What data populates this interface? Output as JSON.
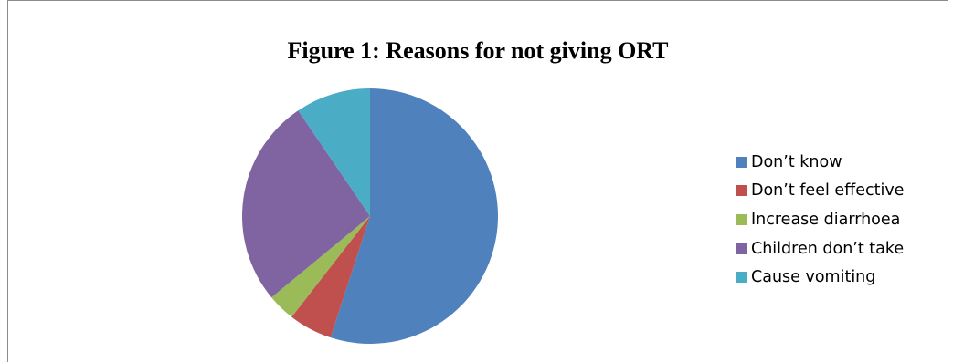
{
  "chart_data": {
    "type": "pie",
    "title": "Figure 1: Reasons for not giving ORT",
    "slices": [
      {
        "label": "Don’t know",
        "value": 55,
        "color": "#4f81bd"
      },
      {
        "label": "Don’t feel effective",
        "value": 5.5,
        "color": "#c0504d"
      },
      {
        "label": "Increase diarrhoea",
        "value": 3.5,
        "color": "#9bbb59"
      },
      {
        "label": "Children don’t take",
        "value": 26.5,
        "color": "#8064a2"
      },
      {
        "label": "Cause vomiting",
        "value": 9.5,
        "color": "#4bacc6"
      }
    ],
    "start_angle_deg": 0,
    "direction": "clockwise",
    "legend_position": "right"
  }
}
